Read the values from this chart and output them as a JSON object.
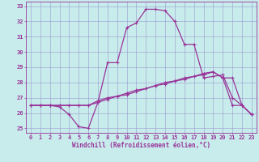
{
  "xlabel": "Windchill (Refroidissement éolien,°C)",
  "background_color": "#c8ecec",
  "line_color": "#993399",
  "grid_color": "#9999cc",
  "xlim": [
    -0.5,
    23.5
  ],
  "ylim": [
    24.7,
    33.3
  ],
  "xticks": [
    0,
    1,
    2,
    3,
    4,
    5,
    6,
    7,
    8,
    9,
    10,
    11,
    12,
    13,
    14,
    15,
    16,
    17,
    18,
    19,
    20,
    21,
    22,
    23
  ],
  "yticks": [
    25,
    26,
    27,
    28,
    29,
    30,
    31,
    32,
    33
  ],
  "curve1_x": [
    0,
    1,
    2,
    3,
    4,
    5,
    6,
    7,
    8,
    9,
    10,
    11,
    12,
    13,
    14,
    15,
    16,
    17,
    18,
    19,
    20,
    21,
    22,
    23
  ],
  "curve1_y": [
    26.5,
    26.5,
    26.5,
    26.4,
    25.9,
    25.1,
    25.0,
    26.7,
    29.3,
    29.3,
    31.6,
    31.9,
    32.8,
    32.8,
    32.7,
    32.0,
    30.5,
    30.5,
    28.3,
    28.4,
    28.5,
    27.0,
    26.5,
    25.9
  ],
  "curve2_x": [
    0,
    1,
    2,
    3,
    4,
    5,
    6,
    7,
    8,
    9,
    10,
    11,
    12,
    13,
    14,
    15,
    16,
    17,
    18,
    19,
    20,
    21,
    22,
    23
  ],
  "curve2_y": [
    26.5,
    26.5,
    26.5,
    26.5,
    26.5,
    26.5,
    26.5,
    26.7,
    26.9,
    27.1,
    27.2,
    27.4,
    27.6,
    27.8,
    27.9,
    28.1,
    28.2,
    28.4,
    28.6,
    28.7,
    28.3,
    28.3,
    26.5,
    25.9
  ],
  "curve3_x": [
    0,
    1,
    2,
    3,
    4,
    5,
    6,
    7,
    8,
    9,
    10,
    11,
    12,
    13,
    14,
    15,
    16,
    17,
    18,
    19,
    20,
    21,
    22,
    23
  ],
  "curve3_y": [
    26.5,
    26.5,
    26.5,
    26.5,
    26.5,
    26.5,
    26.5,
    26.8,
    27.0,
    27.1,
    27.3,
    27.5,
    27.6,
    27.8,
    28.0,
    28.1,
    28.3,
    28.4,
    28.5,
    28.7,
    28.3,
    26.5,
    26.5,
    25.9
  ],
  "markersize": 3,
  "linewidth": 0.9,
  "xlabel_fontsize": 5.5,
  "tick_labelsize": 5.0
}
